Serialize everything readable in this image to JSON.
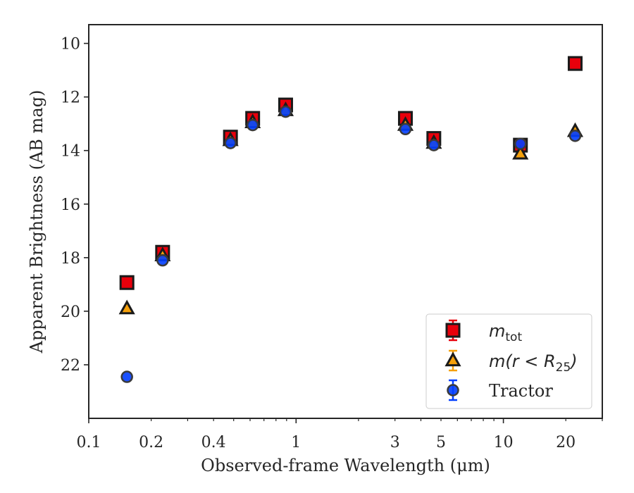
{
  "chart_data": {
    "type": "scatter",
    "xlabel": "Observed-frame Wavelength (μm)",
    "ylabel": "Apparent Brightness (AB mag)",
    "x_scale": "log",
    "xlim": [
      0.1,
      30
    ],
    "ylim": [
      24,
      9.3
    ],
    "y_inverted": true,
    "grid": false,
    "legend_position": "lower-right",
    "x_ticks": [
      0.1,
      0.2,
      0.4,
      1,
      3,
      5,
      10,
      20
    ],
    "x_tick_labels": [
      "0.1",
      "0.2",
      "0.4",
      "1",
      "3",
      "5",
      "10",
      "20"
    ],
    "y_ticks": [
      10,
      12,
      14,
      16,
      18,
      20,
      22
    ],
    "y_tick_labels": [
      "10",
      "12",
      "14",
      "16",
      "18",
      "20",
      "22"
    ],
    "series": [
      {
        "name": "m_tot",
        "label_main": "m",
        "label_sub": "tot",
        "marker": "square",
        "face_color": "#e8000b",
        "edge_color": "#1a1a1a",
        "error_color": "#e8000b",
        "x": [
          0.1528,
          0.2271,
          0.4825,
          0.6175,
          0.8905,
          3.368,
          4.618,
          12.08,
          22.19
        ],
        "y": [
          18.93,
          17.8,
          13.5,
          12.8,
          12.3,
          12.8,
          13.55,
          13.8,
          10.75
        ]
      },
      {
        "name": "m(r < R_25)",
        "label_main": "m(r < R",
        "label_sub": "25",
        "label_end": ")",
        "marker": "triangle",
        "face_color": "#f5a00b",
        "edge_color": "#1a1a1a",
        "error_color": "#f5a00b",
        "x": [
          0.1528,
          0.2271,
          0.4825,
          0.6175,
          0.8905,
          3.368,
          4.618,
          12.08,
          22.19
        ],
        "y": [
          19.9,
          17.92,
          13.62,
          12.95,
          12.5,
          13.05,
          13.72,
          14.12,
          13.28
        ]
      },
      {
        "name": "Tractor",
        "marker": "circle",
        "face_color": "#023eff",
        "edge_color": "#3a3a3a",
        "error_color": "#023eff",
        "x": [
          0.1528,
          0.2271,
          0.4825,
          0.6175,
          0.8905,
          3.368,
          4.618,
          12.08,
          22.19
        ],
        "y": [
          22.45,
          18.1,
          13.72,
          13.05,
          12.55,
          13.2,
          13.8,
          13.75,
          13.45
        ]
      }
    ]
  }
}
